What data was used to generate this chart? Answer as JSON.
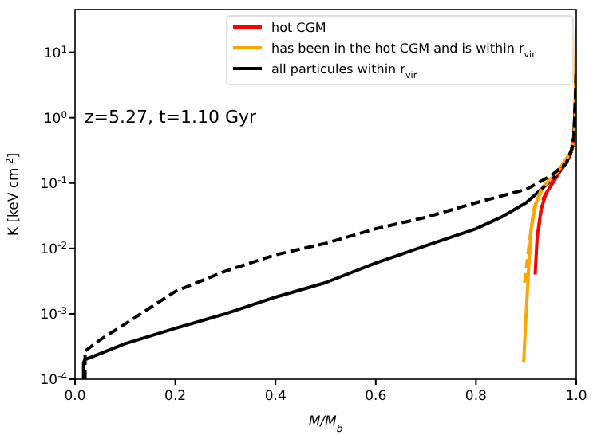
{
  "chart_data": {
    "type": "line",
    "xlabel": "M/M$_{b}$",
    "ylabel": "K [keV cm$^{-2}$]",
    "annotations": [
      "z=5.27, t=1.10 Gyr"
    ],
    "log": "y",
    "xlim": [
      0,
      1
    ],
    "ylim": [
      0.0001,
      45
    ],
    "xticks": [
      {
        "value": 0,
        "label": "0.0"
      },
      {
        "value": 0.2,
        "label": "0.2"
      },
      {
        "value": 0.4,
        "label": "0.4"
      },
      {
        "value": 0.6,
        "label": "0.6"
      },
      {
        "value": 0.8,
        "label": "0.8"
      },
      {
        "value": 1,
        "label": "1.0"
      }
    ],
    "yticks": [
      {
        "value": 0.0001,
        "label": "10$^{-4}$"
      },
      {
        "value": 0.001,
        "label": "10$^{-3}$"
      },
      {
        "value": 0.01,
        "label": "10$^{-2}$"
      },
      {
        "value": 0.1,
        "label": "10$^{-1}$"
      },
      {
        "value": 1,
        "label": "10$^{0}$"
      },
      {
        "value": 10,
        "label": "10$^{1}$"
      }
    ],
    "legend": "top right",
    "grid": false,
    "marker": "none",
    "series": [
      {
        "name": "hot CGM",
        "color": "#ff0000",
        "line_style": "solid",
        "x": [
          0.918,
          0.922,
          0.93,
          0.94,
          0.96,
          0.99,
          0.997,
          1.0
        ],
        "values": [
          0.004,
          0.015,
          0.04,
          0.07,
          0.12,
          0.3,
          0.6,
          5
        ]
      },
      {
        "name": "has been in the hot CGM and is within r$_{vir}$",
        "color": "#ffa500",
        "line_style": "solid",
        "x": [
          0.895,
          0.9,
          0.905,
          0.91,
          0.92,
          0.935,
          0.96,
          0.99,
          0.997,
          1.0
        ],
        "values": [
          0.00018,
          0.001,
          0.005,
          0.02,
          0.05,
          0.09,
          0.14,
          0.3,
          0.6,
          25
        ]
      },
      {
        "name": "all particules within r$_{vir}$",
        "color": "#000000",
        "line_style": "solid",
        "x": [
          0.017,
          0.017,
          0.02,
          0.1,
          0.2,
          0.3,
          0.4,
          0.5,
          0.6,
          0.7,
          0.8,
          0.85,
          0.9,
          0.93,
          0.96,
          0.98,
          0.99,
          0.995,
          1.0
        ],
        "values": [
          0.0001,
          0.00018,
          0.0002,
          0.00035,
          0.0006,
          0.001,
          0.0018,
          0.003,
          0.006,
          0.011,
          0.02,
          0.03,
          0.05,
          0.08,
          0.13,
          0.2,
          0.3,
          0.5,
          3
        ]
      },
      {
        "color": "#ff0000",
        "line_style": "dashed",
        "x": [
          0.925,
          0.93,
          0.935,
          0.945,
          0.96,
          0.99,
          0.997,
          1.0
        ],
        "values": [
          0.02,
          0.04,
          0.06,
          0.08,
          0.13,
          0.3,
          0.6,
          5
        ]
      },
      {
        "color": "#ffa500",
        "line_style": "dashed",
        "x": [
          0.897,
          0.905,
          0.915,
          0.93,
          0.96,
          0.99,
          0.997,
          1.0
        ],
        "values": [
          0.003,
          0.01,
          0.04,
          0.08,
          0.14,
          0.3,
          0.6,
          10
        ]
      },
      {
        "color": "#000000",
        "line_style": "dashed",
        "x": [
          0.02,
          0.02,
          0.05,
          0.1,
          0.2,
          0.3,
          0.4,
          0.5,
          0.6,
          0.7,
          0.8,
          0.9,
          0.95,
          0.98,
          0.995,
          1.0
        ],
        "values": [
          0.0001,
          0.00027,
          0.0004,
          0.0007,
          0.0022,
          0.0045,
          0.008,
          0.012,
          0.02,
          0.03,
          0.05,
          0.08,
          0.13,
          0.2,
          0.4,
          5
        ]
      }
    ]
  }
}
